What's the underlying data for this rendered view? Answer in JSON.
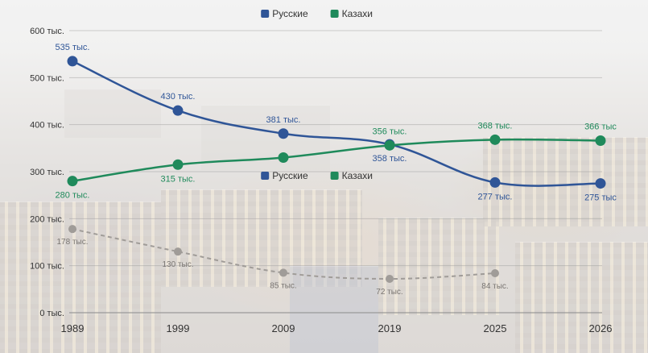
{
  "chart_data": {
    "type": "line",
    "categories": [
      "1989",
      "1999",
      "2009",
      "2019",
      "2025",
      "2026"
    ],
    "series": [
      {
        "name": "Русские",
        "color": "#2f5597",
        "values": [
          535,
          430,
          381,
          358,
          277,
          275
        ],
        "labels": [
          "535 тыс.",
          "430 тыс.",
          "381 тыс.",
          "358 тыс.",
          "277 тыс.",
          "275 тыс"
        ],
        "label_side": [
          "above",
          "above",
          "above",
          "below",
          "below",
          "below"
        ]
      },
      {
        "name": "Казахи",
        "color": "#1f8a5b",
        "values": [
          280,
          315,
          330,
          356,
          368,
          366
        ],
        "labels": [
          "280 тыс.",
          "315 тыс.",
          "",
          "356 тыс.",
          "368 тыс.",
          "366 тыс"
        ],
        "label_side": [
          "below",
          "below",
          "below",
          "above",
          "above",
          "above"
        ]
      },
      {
        "name": "",
        "color": "#a09c98",
        "dashed": true,
        "values": [
          178,
          130,
          85,
          72,
          84,
          null
        ],
        "labels": [
          "178 тыс.",
          "130 тыс.",
          "85 тыс.",
          "72 тыс.",
          "84 тыс.",
          ""
        ],
        "label_side": [
          "below",
          "below",
          "below",
          "below",
          "below",
          "below"
        ]
      }
    ],
    "ylim": [
      0,
      600
    ],
    "yticks": [
      0,
      100,
      200,
      300,
      400,
      500,
      600
    ],
    "ytick_labels": [
      "0 тыс.",
      "100 тыс.",
      "200 тыс.",
      "300 тыс.",
      "400 тыс.",
      "500 тыс.",
      "600 тыс."
    ],
    "grid": true,
    "legend": {
      "placement": "top-center",
      "entries": [
        {
          "name": "Русские",
          "color": "#2f5597"
        },
        {
          "name": "Казахи",
          "color": "#1f8a5b"
        }
      ]
    },
    "legend_duplicate": {
      "placement": "center",
      "entries": [
        {
          "name": "Русские",
          "color": "#2f5597"
        },
        {
          "name": "Казахи",
          "color": "#1f8a5b"
        }
      ]
    },
    "xlabel": "",
    "ylabel": "",
    "title": ""
  }
}
